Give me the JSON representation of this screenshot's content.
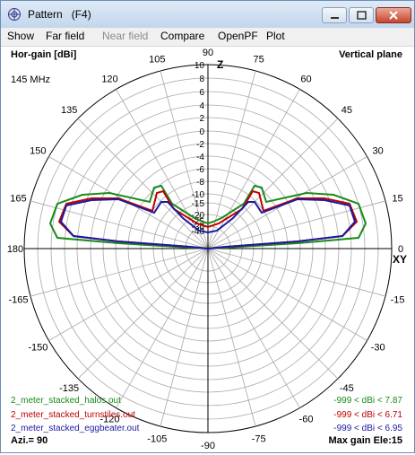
{
  "window": {
    "title": "Pattern   (F4)",
    "min_icon": "minimize-icon",
    "max_icon": "maximize-icon",
    "close_icon": "close-icon"
  },
  "menu": [
    "Show",
    "Far field",
    "Near field",
    "Compare",
    "OpenPF",
    "Plot"
  ],
  "menu_disabled": [
    "Near field"
  ],
  "plot": {
    "title_left": "Hor-gain [dBi]",
    "title_right": "Vertical plane",
    "frequency": "145 MHz",
    "azimuth": "Azi.= 90",
    "max_gain": "Max gain Ele:15",
    "axis_z": "Z",
    "axis_xy": "XY",
    "angle_labels": [
      "90",
      "75",
      "60",
      "45",
      "30",
      "15",
      "0",
      "-15",
      "-30",
      "-45",
      "-60",
      "-75",
      "-90",
      "-105",
      "-120",
      "-135",
      "-150",
      "-165",
      "180",
      "165",
      "150",
      "135",
      "120",
      "105"
    ],
    "radial_labels": [
      "10",
      "8",
      "6",
      "4",
      "2",
      "0",
      "-2",
      "-4",
      "-6",
      "-8",
      "-10",
      "-15",
      "-20",
      "-25",
      "-30",
      "-40"
    ]
  },
  "legend": [
    {
      "name": "2_meter_stacked_halos.out",
      "range": "-999 < dBi < 7.87",
      "color": "#1a8a1a"
    },
    {
      "name": "2_meter_stacked_turnstiles.out",
      "range": "-999 < dBi < 6.71",
      "color": "#c00000"
    },
    {
      "name": "2_meter_stacked_eggbeater.out",
      "range": "-999 < dBi < 6.95",
      "color": "#1a1aa0"
    }
  ]
}
